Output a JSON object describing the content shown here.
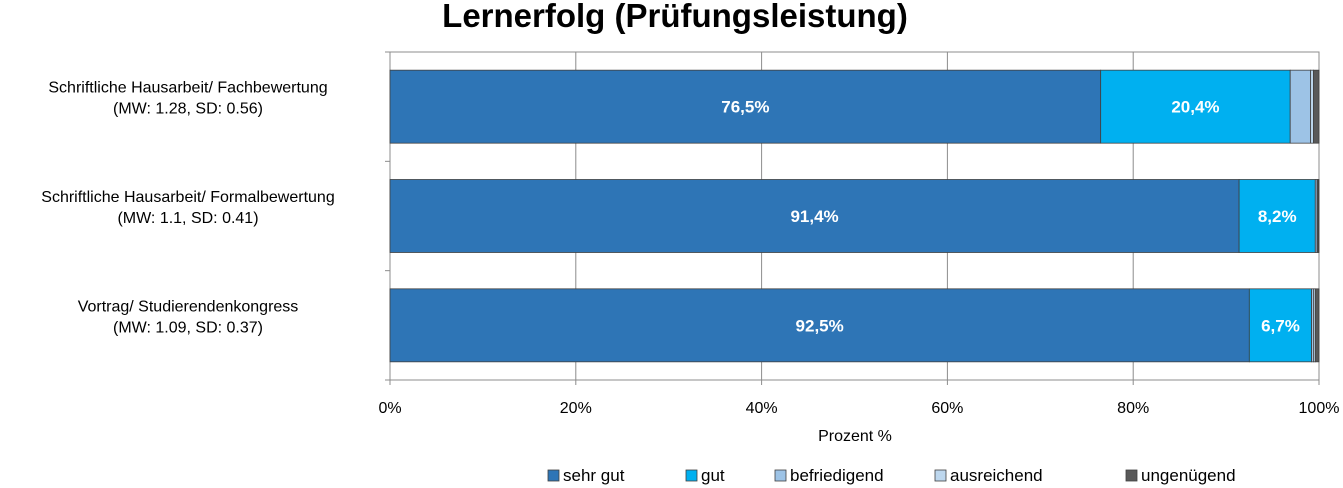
{
  "chart_data": {
    "type": "bar",
    "orientation": "horizontal",
    "stacked": true,
    "title": "Lernerfolg (Prüfungsleistung)",
    "xlabel": "Prozent %",
    "ylabel": "",
    "xlim": [
      0,
      100
    ],
    "x_ticks": [
      "0%",
      "20%",
      "40%",
      "60%",
      "80%",
      "100%"
    ],
    "grid": true,
    "legend_position": "bottom",
    "categories": [
      {
        "line1": "Schriftliche Hausarbeit/ Fachbewertung",
        "line2": "(MW: 1.28, SD: 0.56)"
      },
      {
        "line1": "Schriftliche Hausarbeit/ Formalbewertung",
        "line2": "(MW: 1.1, SD: 0.41)"
      },
      {
        "line1": "Vortrag/ Studierendenkongress",
        "line2": "(MW: 1.09, SD: 0.37)"
      }
    ],
    "series": [
      {
        "name": "sehr gut",
        "color": "#2e75b6",
        "values": [
          76.5,
          91.4,
          92.5
        ],
        "labels": [
          "76,5%",
          "91,4%",
          "92,5%"
        ]
      },
      {
        "name": "gut",
        "color": "#00b0f0",
        "values": [
          20.4,
          8.2,
          6.7
        ],
        "labels": [
          "20,4%",
          "8,2%",
          "6,7%"
        ]
      },
      {
        "name": "befriedigend",
        "color": "#9dc3e6",
        "values": [
          2.2,
          0.2,
          0.2
        ],
        "labels": [
          "",
          "",
          ""
        ]
      },
      {
        "name": "ausreichend",
        "color": "#bdd7ee",
        "values": [
          0.3,
          0.1,
          0.2
        ],
        "labels": [
          "",
          "",
          ""
        ]
      },
      {
        "name": "ungenügend",
        "color": "#595959",
        "values": [
          0.6,
          0.1,
          0.4
        ],
        "labels": [
          "",
          "",
          ""
        ]
      }
    ]
  }
}
